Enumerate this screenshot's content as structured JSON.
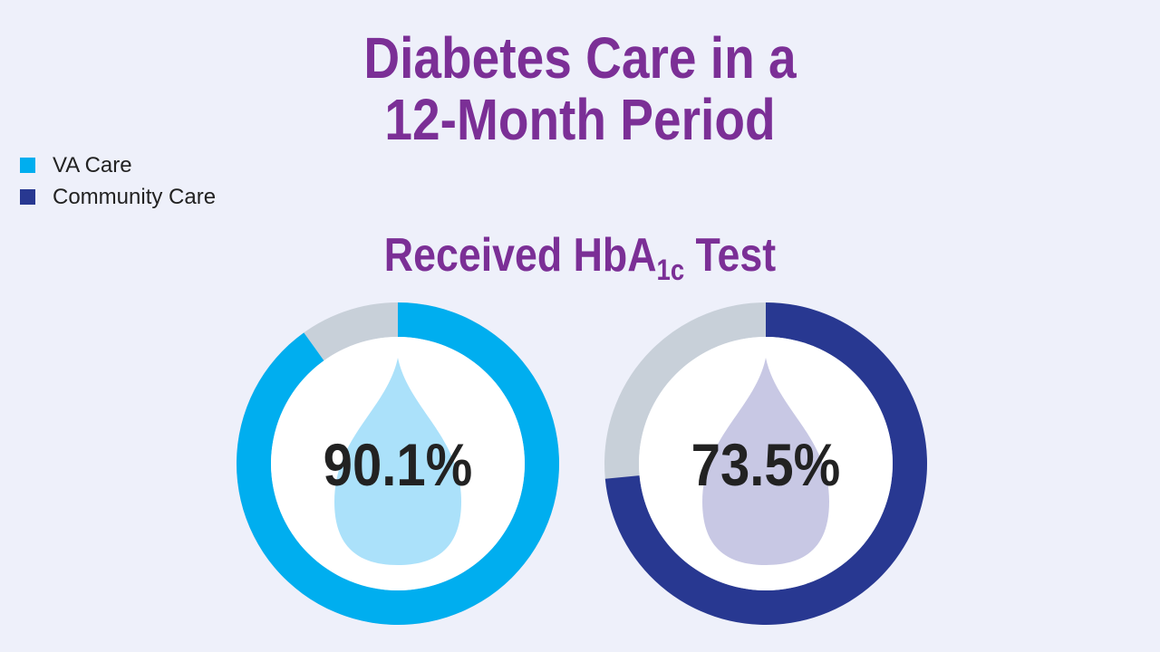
{
  "title": {
    "line1": "Diabetes Care in a",
    "line2": "12-Month Period"
  },
  "legend": [
    {
      "label": "VA Care",
      "color": "#00aeef"
    },
    {
      "label": "Community Care",
      "color": "#283891"
    }
  ],
  "subtitle": {
    "prefix": "Received HbA",
    "sub": "1c",
    "suffix": " Test"
  },
  "chart_data": {
    "type": "pie",
    "variant": "donut",
    "track_color": "#c8d0d9",
    "series": [
      {
        "name": "VA Care",
        "value": 90.1,
        "label": "90.1%",
        "color": "#00aeef",
        "drop_color": "#abe1fa"
      },
      {
        "name": "Community Care",
        "value": 73.5,
        "label": "73.5%",
        "color": "#283891",
        "drop_color": "#c8c8e4"
      }
    ]
  }
}
